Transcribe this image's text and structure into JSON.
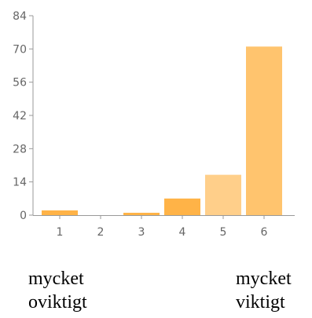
{
  "chart_data": {
    "type": "bar",
    "categories": [
      "1",
      "2",
      "3",
      "4",
      "5",
      "6"
    ],
    "values": [
      2,
      0,
      1,
      7,
      17,
      71
    ],
    "ylim": [
      0,
      84
    ],
    "yticks": [
      "0",
      "14",
      "28",
      "42",
      "56",
      "70",
      "84"
    ],
    "title": "",
    "xlabel": "",
    "ylabel": "",
    "grid": false,
    "colors": {
      "bars": [
        "#FFB347",
        "#FFB347",
        "#FFB347",
        "#FFB347",
        "#FFCF8A",
        "#FFC46E"
      ],
      "axis": "#999999",
      "tick_text": "#666666"
    }
  },
  "annotations": {
    "low": [
      "mycket",
      "oviktigt"
    ],
    "high": [
      "mycket",
      "viktigt"
    ]
  }
}
